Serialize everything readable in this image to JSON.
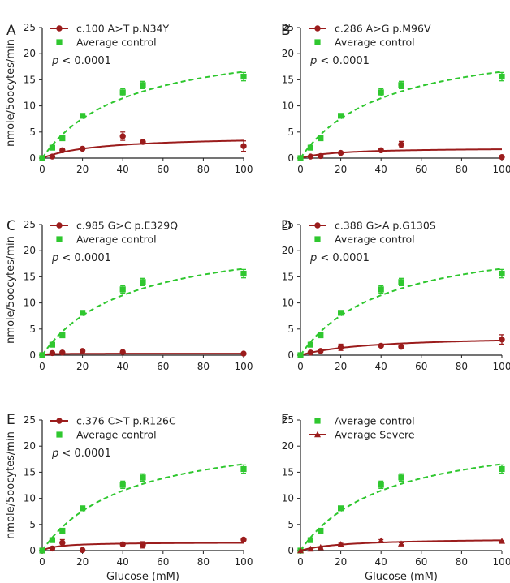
{
  "colors": {
    "mutant": "#9b1c1c",
    "control": "#2fc72f",
    "axis": "#222222"
  },
  "chart_data": [
    {
      "panel": "A",
      "type": "scatter",
      "xlabel": "",
      "ylabel": "nmole/5oocytes/min",
      "xlim": [
        0,
        100
      ],
      "ylim": [
        0,
        25
      ],
      "xticks": [
        "0",
        "20",
        "40",
        "60",
        "80",
        "100"
      ],
      "yticks": [
        "0",
        "5",
        "10",
        "15",
        "20",
        "25"
      ],
      "pvalue": "p < 0.0001",
      "legend": "top-left",
      "series": [
        {
          "name": "c.100 A>T  p.N34Y",
          "marker": "circle",
          "color_key": "mutant",
          "x": [
            0,
            5,
            10,
            20,
            40,
            50,
            100
          ],
          "y": [
            0,
            0.3,
            1.5,
            1.8,
            4.2,
            3.1,
            2.3
          ],
          "err": [
            0,
            0.2,
            0.3,
            0.2,
            0.8,
            0.3,
            1.0
          ],
          "fit": {
            "vmax": 4.3,
            "km": 28
          }
        },
        {
          "name": "Average control",
          "marker": "square",
          "color_key": "control",
          "x": [
            0,
            5,
            10,
            20,
            40,
            50,
            100
          ],
          "y": [
            0,
            2.0,
            3.8,
            8.1,
            12.6,
            14.0,
            15.6
          ],
          "err": [
            0,
            0.3,
            0.3,
            0.4,
            0.7,
            0.7,
            0.8
          ],
          "fit": {
            "vmax": 23.5,
            "km": 42
          }
        }
      ]
    },
    {
      "panel": "B",
      "type": "scatter",
      "xlabel": "",
      "ylabel": "",
      "xlim": [
        0,
        100
      ],
      "ylim": [
        0,
        25
      ],
      "xticks": [
        "0",
        "20",
        "40",
        "60",
        "80",
        "100"
      ],
      "yticks": [
        "0",
        "5",
        "10",
        "15",
        "20",
        "25"
      ],
      "pvalue": "p < 0.0001",
      "legend": "top-left",
      "series": [
        {
          "name": "c.286 A>G  p.M96V",
          "marker": "circle",
          "color_key": "mutant",
          "x": [
            0,
            5,
            10,
            20,
            40,
            50,
            100
          ],
          "y": [
            0,
            0.3,
            0.4,
            1.0,
            1.5,
            2.6,
            0.2
          ],
          "err": [
            0,
            0.1,
            0.1,
            0.2,
            0.3,
            0.6,
            0.1
          ],
          "fit": {
            "vmax": 2.0,
            "km": 18
          }
        },
        {
          "name": "Average control",
          "marker": "square",
          "color_key": "control",
          "x": [
            0,
            5,
            10,
            20,
            40,
            50,
            100
          ],
          "y": [
            0,
            2.0,
            3.8,
            8.1,
            12.6,
            14.0,
            15.6
          ],
          "err": [
            0,
            0.3,
            0.3,
            0.4,
            0.7,
            0.7,
            0.8
          ],
          "fit": {
            "vmax": 23.5,
            "km": 42
          }
        }
      ]
    },
    {
      "panel": "C",
      "type": "scatter",
      "xlabel": "",
      "ylabel": "nmole/5oocytes/min",
      "xlim": [
        0,
        100
      ],
      "ylim": [
        0,
        25
      ],
      "xticks": [
        "0",
        "20",
        "40",
        "60",
        "80",
        "100"
      ],
      "yticks": [
        "0",
        "5",
        "10",
        "15",
        "20",
        "25"
      ],
      "pvalue": "p < 0.0001",
      "legend": "top-left",
      "series": [
        {
          "name": "c.985 G>C p.E329Q",
          "marker": "circle",
          "color_key": "mutant",
          "x": [
            0,
            5,
            10,
            20,
            40,
            100
          ],
          "y": [
            0,
            0.4,
            0.5,
            0.8,
            0.6,
            0.3
          ],
          "err": [
            0,
            0.1,
            0.1,
            0.1,
            0.1,
            0.1
          ],
          "fit": {
            "vmax": 0.3,
            "km": 2
          }
        },
        {
          "name": "Average control",
          "marker": "square",
          "color_key": "control",
          "x": [
            0,
            5,
            10,
            20,
            40,
            50,
            100
          ],
          "y": [
            0,
            2.0,
            3.8,
            8.1,
            12.6,
            14.0,
            15.6
          ],
          "err": [
            0,
            0.3,
            0.3,
            0.4,
            0.7,
            0.7,
            0.8
          ],
          "fit": {
            "vmax": 23.5,
            "km": 42
          }
        }
      ]
    },
    {
      "panel": "D",
      "type": "scatter",
      "xlabel": "",
      "ylabel": "",
      "xlim": [
        0,
        100
      ],
      "ylim": [
        0,
        25
      ],
      "xticks": [
        "0",
        "20",
        "40",
        "60",
        "80",
        "100"
      ],
      "yticks": [
        "0",
        "5",
        "10",
        "15",
        "20",
        "25"
      ],
      "pvalue": "p < 0.0001",
      "legend": "top-left",
      "series": [
        {
          "name": "c.388 G>A  p.G130S",
          "marker": "circle",
          "color_key": "mutant",
          "x": [
            0,
            5,
            10,
            20,
            40,
            50,
            100
          ],
          "y": [
            0,
            0.5,
            0.8,
            1.5,
            1.8,
            1.6,
            3.0
          ],
          "err": [
            0,
            0.1,
            0.2,
            0.6,
            0.2,
            0.2,
            0.9
          ],
          "fit": {
            "vmax": 3.8,
            "km": 35
          }
        },
        {
          "name": "Average control",
          "marker": "square",
          "color_key": "control",
          "x": [
            0,
            5,
            10,
            20,
            40,
            50,
            100
          ],
          "y": [
            0,
            2.0,
            3.8,
            8.1,
            12.6,
            14.0,
            15.6
          ],
          "err": [
            0,
            0.3,
            0.3,
            0.4,
            0.7,
            0.7,
            0.8
          ],
          "fit": {
            "vmax": 23.5,
            "km": 42
          }
        }
      ]
    },
    {
      "panel": "E",
      "type": "scatter",
      "xlabel": "Glucose (mM)",
      "ylabel": "nmole/5oocytes/min",
      "xlim": [
        0,
        100
      ],
      "ylim": [
        0,
        25
      ],
      "xticks": [
        "0",
        "20",
        "40",
        "60",
        "80",
        "100"
      ],
      "yticks": [
        "0",
        "5",
        "10",
        "15",
        "20",
        "25"
      ],
      "pvalue": "p < 0.0001",
      "legend": "top-left",
      "series": [
        {
          "name": "c.376 C>T  p.R126C",
          "marker": "circle",
          "color_key": "mutant",
          "x": [
            0,
            5,
            10,
            20,
            40,
            50,
            100
          ],
          "y": [
            0,
            0.4,
            1.5,
            0.1,
            1.2,
            1.1,
            2.1
          ],
          "err": [
            0,
            0.1,
            0.6,
            0.1,
            0.2,
            0.6,
            0.2
          ],
          "fit": {
            "vmax": 1.6,
            "km": 8
          }
        },
        {
          "name": "Average control",
          "marker": "square",
          "color_key": "control",
          "x": [
            0,
            5,
            10,
            20,
            40,
            50,
            100
          ],
          "y": [
            0,
            2.0,
            3.8,
            8.1,
            12.6,
            14.0,
            15.6
          ],
          "err": [
            0,
            0.3,
            0.3,
            0.4,
            0.7,
            0.7,
            0.8
          ],
          "fit": {
            "vmax": 23.5,
            "km": 42
          }
        }
      ]
    },
    {
      "panel": "F",
      "type": "scatter",
      "xlabel": "Glucose (mM)",
      "ylabel": "",
      "xlim": [
        0,
        100
      ],
      "ylim": [
        0,
        25
      ],
      "xticks": [
        "0",
        "20",
        "40",
        "60",
        "80",
        "100"
      ],
      "yticks": [
        "0",
        "5",
        "10",
        "15",
        "20",
        "25"
      ],
      "pvalue": "",
      "legend": "top-left",
      "series": [
        {
          "name": "Average control",
          "marker": "square",
          "color_key": "control",
          "x": [
            0,
            5,
            10,
            20,
            40,
            50,
            100
          ],
          "y": [
            0,
            2.0,
            3.8,
            8.1,
            12.6,
            14.0,
            15.6
          ],
          "err": [
            0,
            0.3,
            0.3,
            0.4,
            0.7,
            0.7,
            0.8
          ],
          "fit": {
            "vmax": 23.5,
            "km": 42
          }
        },
        {
          "name": "Average Severe",
          "marker": "triangle",
          "color_key": "mutant",
          "x": [
            0,
            5,
            10,
            20,
            40,
            50,
            100
          ],
          "y": [
            0,
            0.3,
            0.6,
            1.2,
            1.9,
            1.3,
            1.8
          ],
          "err": [
            0,
            0.1,
            0.1,
            0.2,
            0.2,
            0.2,
            0.1
          ],
          "fit": {
            "vmax": 2.4,
            "km": 22
          }
        }
      ]
    }
  ]
}
